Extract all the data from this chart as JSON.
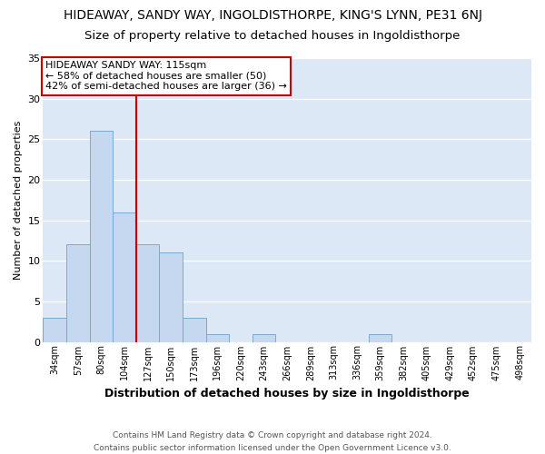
{
  "title": "HIDEAWAY, SANDY WAY, INGOLDISTHORPE, KING'S LYNN, PE31 6NJ",
  "subtitle": "Size of property relative to detached houses in Ingoldisthorpe",
  "xlabel": "Distribution of detached houses by size in Ingoldisthorpe",
  "ylabel": "Number of detached properties",
  "bin_labels": [
    "34sqm",
    "57sqm",
    "80sqm",
    "104sqm",
    "127sqm",
    "150sqm",
    "173sqm",
    "196sqm",
    "220sqm",
    "243sqm",
    "266sqm",
    "289sqm",
    "313sqm",
    "336sqm",
    "359sqm",
    "382sqm",
    "405sqm",
    "429sqm",
    "452sqm",
    "475sqm",
    "498sqm"
  ],
  "bar_values": [
    3,
    12,
    26,
    16,
    12,
    11,
    3,
    1,
    0,
    1,
    0,
    0,
    0,
    0,
    1,
    0,
    0,
    0,
    0,
    0,
    0
  ],
  "bar_color": "#c5d8f0",
  "bar_edge_color": "#7aaad0",
  "ylim": [
    0,
    35
  ],
  "yticks": [
    0,
    5,
    10,
    15,
    20,
    25,
    30,
    35
  ],
  "vline_x_index": 3,
  "vline_color": "#cc0000",
  "annotation_title": "HIDEAWAY SANDY WAY: 115sqm",
  "annotation_line1": "← 58% of detached houses are smaller (50)",
  "annotation_line2": "42% of semi-detached houses are larger (36) →",
  "annotation_box_color": "#ffffff",
  "annotation_box_edge": "#cc0000",
  "footer_line1": "Contains HM Land Registry data © Crown copyright and database right 2024.",
  "footer_line2": "Contains public sector information licensed under the Open Government Licence v3.0.",
  "figure_background": "#ffffff",
  "plot_background": "#dce8f5",
  "grid_color": "#ffffff",
  "title_fontsize": 10,
  "subtitle_fontsize": 9.5
}
